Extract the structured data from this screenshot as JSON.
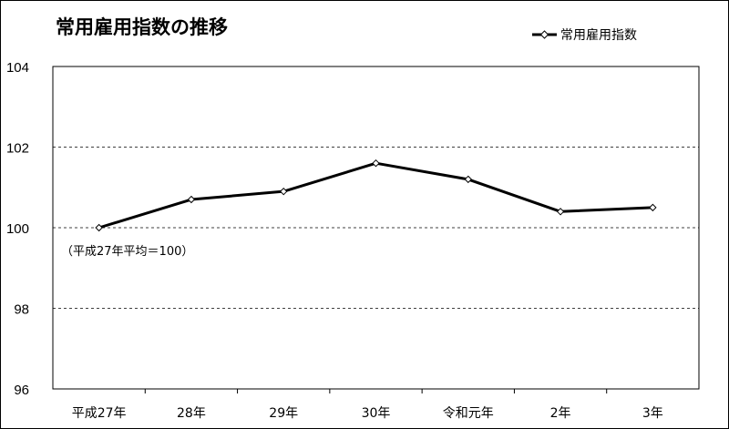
{
  "chart_data": {
    "type": "line",
    "title": "常用雇用指数の推移",
    "categories": [
      "平成27年",
      "28年",
      "29年",
      "30年",
      "令和元年",
      "2年",
      "3年"
    ],
    "series": [
      {
        "name": "常用雇用指数",
        "values": [
          100.0,
          100.7,
          100.9,
          101.6,
          101.2,
          100.4,
          100.5
        ]
      }
    ],
    "ylim": [
      96,
      104
    ],
    "yticks": [
      "96",
      "98",
      "100",
      "102",
      "104"
    ],
    "grid": "dashed horizontal at 98, 100, 102",
    "legend": "top-right",
    "annotation": "（平成27年平均＝100）",
    "line_color": "#000000",
    "marker": "diamond-open"
  }
}
